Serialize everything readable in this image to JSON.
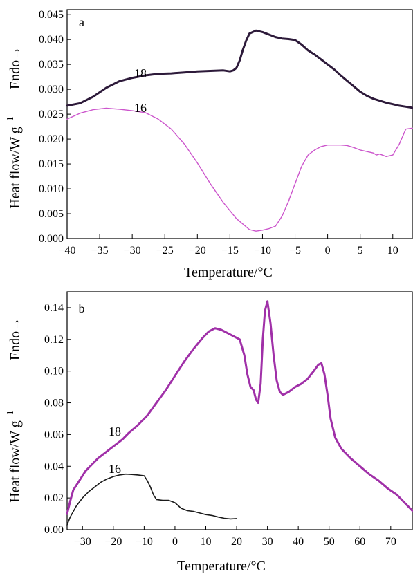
{
  "colors": {
    "series_18_top": "#2d1a3a",
    "series_16_top": "#cc55cc",
    "series_18_bottom": "#a030a8",
    "series_16_bottom": "#1a1a1a",
    "axis": "#000000"
  },
  "chart_data": [
    {
      "panel": "a",
      "type": "line",
      "panel_label": "a",
      "xlabel": "Temperature/°C",
      "ylabel": "Heat flow/W g",
      "ylabel_exponent": "−1",
      "endo_label": "Endo→",
      "xlim": [
        -40,
        13
      ],
      "ylim": [
        0.0,
        0.046
      ],
      "x_ticks": [
        -40,
        -35,
        -30,
        -25,
        -20,
        -15,
        -10,
        -5,
        0,
        5,
        10
      ],
      "x_tick_labels": [
        "−40",
        "−35",
        "−30",
        "−25",
        "−20",
        "−15",
        "−10",
        "−5",
        "0",
        "5",
        "10"
      ],
      "y_ticks": [
        0.0,
        0.005,
        0.01,
        0.015,
        0.02,
        0.025,
        0.03,
        0.035,
        0.04,
        0.045
      ],
      "y_tick_labels": [
        "0.000",
        "0.005",
        "0.010",
        "0.015",
        "0.020",
        "0.025",
        "0.030",
        "0.035",
        "0.040",
        "0.045"
      ],
      "grid": false,
      "series": [
        {
          "name": "18",
          "color": "#2d1a3a",
          "x": [
            -40,
            -38,
            -36,
            -34,
            -32,
            -30,
            -28,
            -26,
            -24,
            -22,
            -20,
            -18,
            -16,
            -15,
            -14.5,
            -14,
            -13.5,
            -13,
            -12.5,
            -12,
            -11,
            -10,
            -9,
            -8,
            -7,
            -6,
            -5,
            -4,
            -3,
            -2,
            -1,
            0,
            1,
            2,
            3,
            4,
            5,
            6,
            7,
            8,
            9,
            10,
            11,
            12,
            13
          ],
          "y": [
            0.0267,
            0.0272,
            0.0285,
            0.0303,
            0.0316,
            0.0323,
            0.0328,
            0.0331,
            0.0332,
            0.0334,
            0.0336,
            0.0337,
            0.0338,
            0.0336,
            0.0338,
            0.0343,
            0.0358,
            0.038,
            0.0398,
            0.0412,
            0.0418,
            0.0415,
            0.041,
            0.0405,
            0.0402,
            0.0401,
            0.0399,
            0.039,
            0.0378,
            0.037,
            0.036,
            0.035,
            0.034,
            0.0328,
            0.0317,
            0.0306,
            0.0295,
            0.0287,
            0.0281,
            0.0277,
            0.0273,
            0.027,
            0.0267,
            0.0265,
            0.0263
          ]
        },
        {
          "name": "16",
          "color": "#cc55cc",
          "x": [
            -40,
            -38,
            -36,
            -34,
            -32,
            -30,
            -28,
            -26,
            -24,
            -22,
            -20,
            -18,
            -16,
            -14,
            -12,
            -11,
            -10,
            -9,
            -8,
            -7,
            -6,
            -5,
            -4,
            -3,
            -2,
            -1,
            0,
            1,
            2,
            3,
            4,
            5,
            6,
            7,
            7.5,
            8,
            9,
            10,
            11,
            12,
            13
          ],
          "y": [
            0.024,
            0.0252,
            0.0259,
            0.0262,
            0.026,
            0.0257,
            0.0253,
            0.024,
            0.022,
            0.019,
            0.0152,
            0.011,
            0.0072,
            0.004,
            0.0018,
            0.0015,
            0.0017,
            0.002,
            0.0025,
            0.0045,
            0.0075,
            0.011,
            0.0145,
            0.0168,
            0.0178,
            0.0185,
            0.0188,
            0.0188,
            0.0188,
            0.0187,
            0.0183,
            0.0178,
            0.0175,
            0.0172,
            0.0168,
            0.017,
            0.0165,
            0.0168,
            0.019,
            0.022,
            0.0222
          ]
        }
      ]
    },
    {
      "panel": "b",
      "type": "line",
      "panel_label": "b",
      "xlabel": "Temperature/°C",
      "ylabel": "Heat flow/W g",
      "ylabel_exponent": "−1",
      "endo_label": "Endo→",
      "xlim": [
        -35,
        77
      ],
      "ylim": [
        0.0,
        0.15
      ],
      "x_ticks": [
        -30,
        -20,
        -10,
        0,
        10,
        20,
        30,
        40,
        50,
        60,
        70
      ],
      "x_tick_labels": [
        "−30",
        "−20",
        "−10",
        "0",
        "10",
        "20",
        "30",
        "40",
        "50",
        "60",
        "70"
      ],
      "y_ticks": [
        0.0,
        0.02,
        0.04,
        0.06,
        0.08,
        0.1,
        0.12,
        0.14
      ],
      "y_tick_labels": [
        "0.00",
        "0.02",
        "0.04",
        "0.06",
        "0.08",
        "0.10",
        "0.12",
        "0.14"
      ],
      "grid": false,
      "series": [
        {
          "name": "18",
          "color": "#a030a8",
          "x": [
            -35,
            -34,
            -33,
            -31,
            -29,
            -27,
            -25,
            -23,
            -21,
            -19,
            -17,
            -15,
            -12,
            -9,
            -6,
            -3,
            0,
            3,
            6,
            9,
            11,
            13,
            15,
            17,
            19,
            21,
            22.5,
            23.5,
            24.5,
            25.5,
            26.3,
            27,
            27.8,
            28.5,
            29.2,
            30,
            31,
            32,
            33,
            34,
            35,
            37,
            39,
            41,
            43,
            45,
            46.5,
            47.5,
            48.5,
            49.5,
            50.5,
            52,
            54,
            57,
            60,
            63,
            66,
            69,
            72,
            75,
            77
          ],
          "y": [
            0.01,
            0.018,
            0.025,
            0.031,
            0.037,
            0.041,
            0.045,
            0.048,
            0.051,
            0.054,
            0.057,
            0.061,
            0.066,
            0.072,
            0.08,
            0.088,
            0.097,
            0.106,
            0.114,
            0.121,
            0.125,
            0.127,
            0.126,
            0.124,
            0.122,
            0.12,
            0.11,
            0.098,
            0.09,
            0.088,
            0.082,
            0.08,
            0.092,
            0.12,
            0.138,
            0.144,
            0.13,
            0.11,
            0.094,
            0.087,
            0.085,
            0.087,
            0.09,
            0.092,
            0.095,
            0.1,
            0.104,
            0.105,
            0.098,
            0.085,
            0.07,
            0.058,
            0.051,
            0.045,
            0.04,
            0.035,
            0.031,
            0.026,
            0.022,
            0.016,
            0.012
          ]
        },
        {
          "name": "16",
          "color": "#1a1a1a",
          "x": [
            -35,
            -34,
            -32,
            -30,
            -28,
            -26,
            -24,
            -22,
            -20,
            -18,
            -16,
            -14,
            -12,
            -10,
            -9,
            -8,
            -7,
            -6,
            -4,
            -2,
            0,
            2,
            4,
            6,
            8,
            10,
            12,
            14,
            16,
            18,
            20
          ],
          "y": [
            0.003,
            0.008,
            0.015,
            0.02,
            0.024,
            0.027,
            0.03,
            0.032,
            0.0335,
            0.0345,
            0.035,
            0.0348,
            0.0345,
            0.034,
            0.031,
            0.027,
            0.022,
            0.019,
            0.0185,
            0.0185,
            0.017,
            0.0135,
            0.012,
            0.0115,
            0.0105,
            0.0095,
            0.009,
            0.008,
            0.0072,
            0.0068,
            0.007
          ]
        }
      ]
    }
  ]
}
